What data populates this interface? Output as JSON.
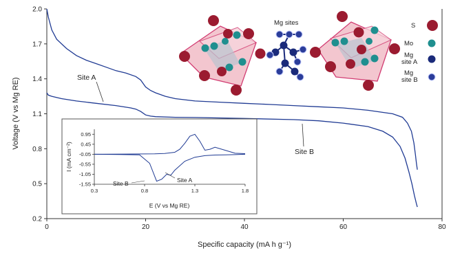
{
  "chart_data": [
    {
      "type": "line",
      "xlabel": "Specific capacity (mA h g⁻¹)",
      "ylabel": "Voltage (V vs Mg RE)",
      "xlim": [
        0,
        80
      ],
      "ylim": [
        0.2,
        2.0
      ],
      "x_ticks": [
        "0",
        "20",
        "40",
        "60",
        "80"
      ],
      "y_ticks": [
        "0.2",
        "0.5",
        "0.8",
        "1.1",
        "1.4",
        "1.7",
        "2.0"
      ],
      "grid": false,
      "colors": {
        "curves": "#1f3a93"
      },
      "annotations": [
        "Site A",
        "Site B"
      ],
      "series": [
        {
          "x": [
            0,
            0.3,
            1,
            2,
            4,
            6,
            8,
            10,
            12,
            14,
            16,
            18,
            19,
            20,
            21,
            22,
            24,
            26,
            30,
            35,
            40,
            45,
            50,
            55,
            60,
            65,
            70,
            72,
            73,
            73.8,
            74.3,
            74.6,
            74.8,
            75
          ],
          "y": [
            2.0,
            1.93,
            1.82,
            1.74,
            1.66,
            1.6,
            1.56,
            1.53,
            1.5,
            1.47,
            1.45,
            1.42,
            1.39,
            1.33,
            1.3,
            1.28,
            1.25,
            1.23,
            1.21,
            1.2,
            1.19,
            1.18,
            1.17,
            1.16,
            1.15,
            1.13,
            1.1,
            1.07,
            1.02,
            0.95,
            0.85,
            0.75,
            0.68,
            0.62
          ]
        },
        {
          "x": [
            0,
            0.3,
            1,
            3,
            6,
            10,
            14,
            17,
            18,
            19,
            20,
            21,
            22,
            26,
            30,
            40,
            50,
            55,
            60,
            65,
            68,
            70,
            71.5,
            72.5,
            73.3,
            73.9,
            74.4,
            74.8,
            75
          ],
          "y": [
            1.28,
            1.26,
            1.25,
            1.23,
            1.21,
            1.19,
            1.17,
            1.15,
            1.14,
            1.12,
            1.09,
            1.08,
            1.075,
            1.07,
            1.068,
            1.06,
            1.05,
            1.04,
            1.02,
            0.99,
            0.95,
            0.9,
            0.82,
            0.72,
            0.6,
            0.5,
            0.4,
            0.33,
            0.3
          ]
        }
      ]
    },
    {
      "type": "line",
      "xlabel": "E (V vs Mg RE)",
      "ylabel": "I (mA cm⁻²)",
      "xlim": [
        0.3,
        1.8
      ],
      "ylim": [
        -1.55,
        1.2
      ],
      "x_ticks": [
        "0.3",
        "0.8",
        "1.3",
        "1.8"
      ],
      "y_ticks": [
        "0.95",
        "0.45",
        "-0.05",
        "-0.55",
        "-1.05",
        "-1.55"
      ],
      "annotations": [
        "Site B",
        "Site A"
      ],
      "series": [
        {
          "x": [
            0.3,
            0.55,
            0.75,
            0.85,
            0.92,
            0.97,
            1.02,
            1.06,
            1.1,
            1.2,
            1.3,
            1.4,
            1.5,
            1.6,
            1.7,
            1.8
          ],
          "y": [
            -0.05,
            -0.06,
            -0.08,
            -0.5,
            -1.4,
            -1.3,
            -1.05,
            -1.1,
            -0.85,
            -0.4,
            -0.2,
            -0.12,
            -0.09,
            -0.08,
            -0.07,
            -0.05
          ]
        },
        {
          "x": [
            0.3,
            0.6,
            0.9,
            1.0,
            1.1,
            1.15,
            1.2,
            1.25,
            1.3,
            1.35,
            1.4,
            1.45,
            1.5,
            1.6,
            1.7,
            1.8
          ],
          "y": [
            -0.05,
            -0.04,
            -0.03,
            -0.01,
            0.05,
            0.2,
            0.5,
            0.85,
            0.95,
            0.6,
            0.15,
            0.2,
            0.3,
            0.15,
            0.0,
            -0.02
          ]
        }
      ]
    }
  ],
  "structure": {
    "title": "Mg sites",
    "legend": [
      {
        "label": "S",
        "color": "#9b1b30"
      },
      {
        "label": "Mo",
        "color": "#1f8f8f"
      },
      {
        "label": "Mg\nsite A",
        "color": "#1a2a7a"
      },
      {
        "label": "Mg\nsite B",
        "color": "#2b3d9a"
      }
    ]
  }
}
